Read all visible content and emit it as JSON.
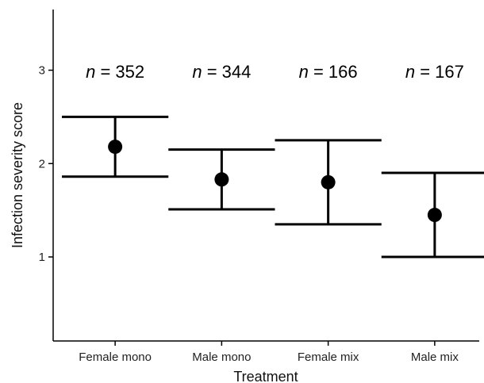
{
  "chart_data": {
    "type": "scatter",
    "title": "",
    "xlabel": "Treatment",
    "ylabel": "Infection severity score",
    "ylim": [
      0.1,
      3.65
    ],
    "yticks": [
      1,
      2,
      3
    ],
    "grid": false,
    "categories": [
      "Female mono",
      "Male mono",
      "Female mix",
      "Male mix"
    ],
    "values": [
      2.18,
      1.83,
      1.8,
      1.45
    ],
    "error_upper": [
      2.5,
      2.15,
      2.25,
      1.9
    ],
    "error_lower": [
      1.86,
      1.51,
      1.35,
      1.0
    ],
    "annotations": [
      "n = 352",
      "n = 344",
      "n = 166",
      "n = 167"
    ],
    "n_prefix": "n",
    "n_values": [
      "352",
      "344",
      "166",
      "167"
    ],
    "colors": {
      "marks": "#000000",
      "axis": "#000000",
      "text": "#222222"
    }
  }
}
